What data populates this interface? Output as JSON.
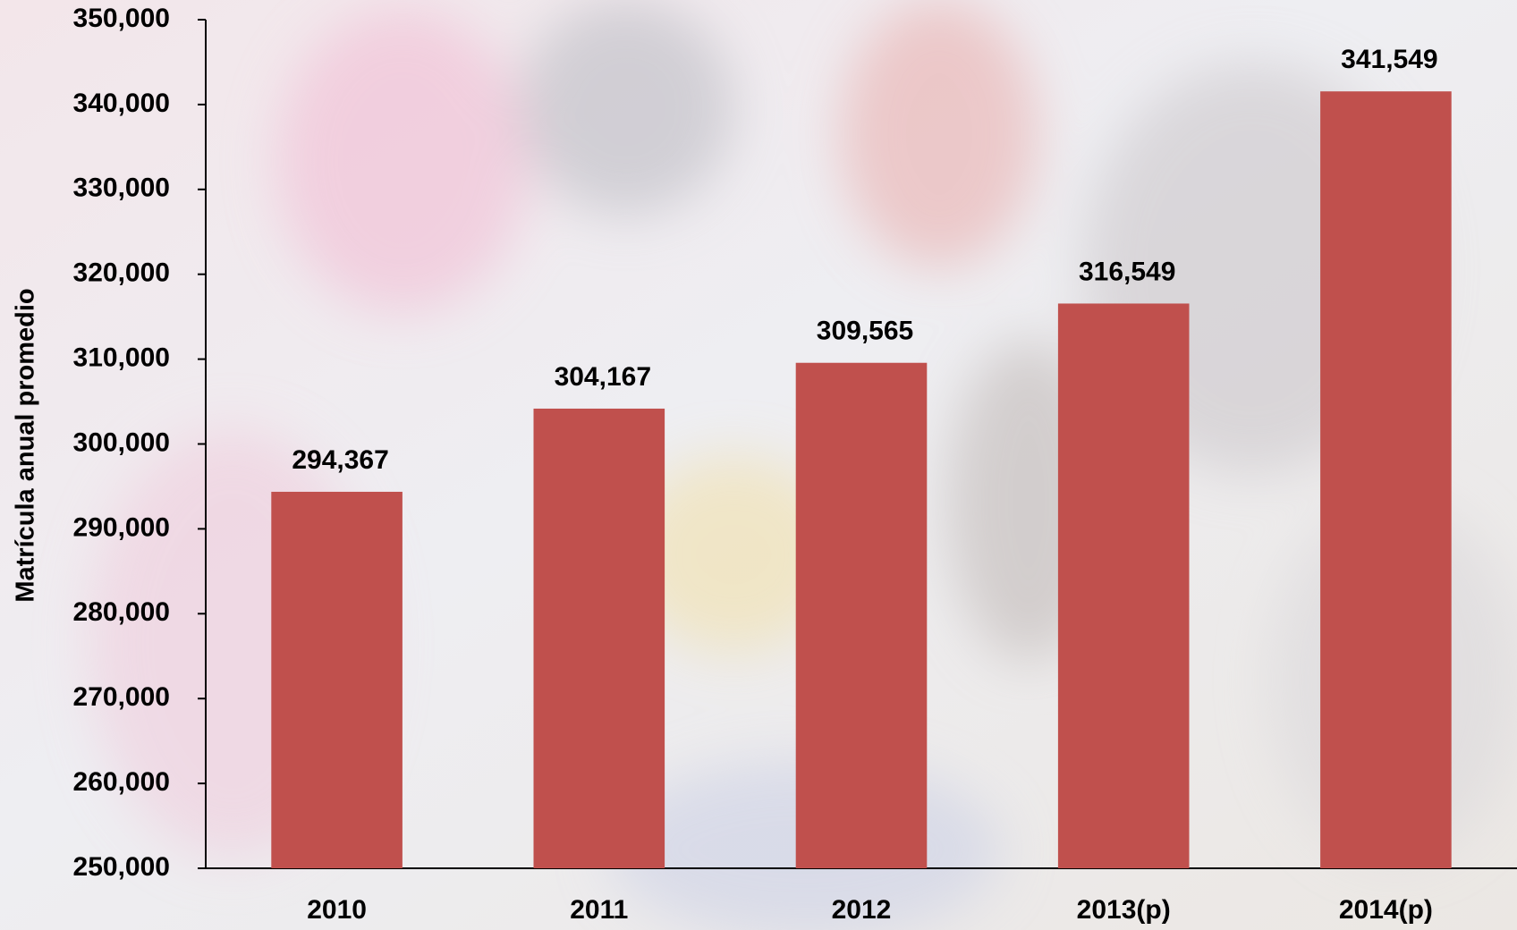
{
  "chart_data": {
    "type": "bar",
    "y_axis_label": "Matrícula anual promedio",
    "categories": [
      "2010",
      "2011",
      "2012",
      "2013(p)",
      "2014(p)"
    ],
    "values": [
      294367,
      304167,
      309565,
      316549,
      341549
    ],
    "value_labels": [
      "294,367",
      "304,167",
      "309,565",
      "316,549",
      "341,549"
    ],
    "color": "#c0504d",
    "ylim": [
      250000,
      350000
    ],
    "yticks": [
      {
        "value": 250000,
        "label": "250,000"
      },
      {
        "value": 260000,
        "label": "260,000"
      },
      {
        "value": 270000,
        "label": "270,000"
      },
      {
        "value": 280000,
        "label": "280,000"
      },
      {
        "value": 290000,
        "label": "290,000"
      },
      {
        "value": 300000,
        "label": "300,000"
      },
      {
        "value": 310000,
        "label": "310,000"
      },
      {
        "value": 320000,
        "label": "320,000"
      },
      {
        "value": 330000,
        "label": "330,000"
      },
      {
        "value": 340000,
        "label": "340,000"
      },
      {
        "value": 350000,
        "label": "350,000"
      }
    ],
    "grid": false
  }
}
